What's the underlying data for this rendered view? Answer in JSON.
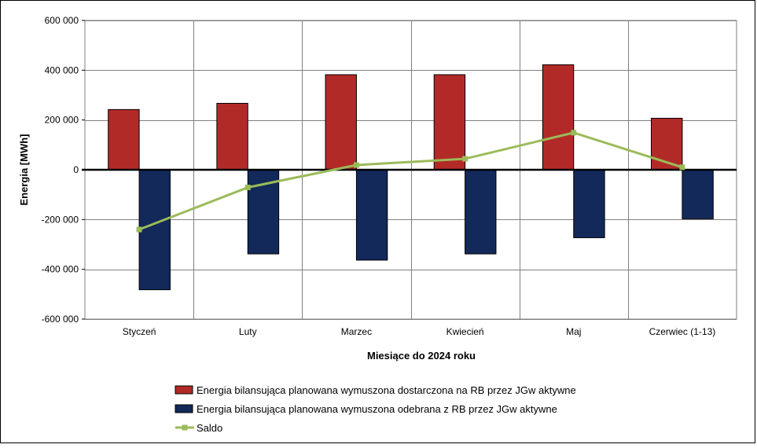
{
  "chart_data": {
    "type": "bar",
    "title": "",
    "xlabel": "Miesiące do 2024  roku",
    "ylabel": "Energia [MWh]",
    "ylim": [
      -600000,
      600000
    ],
    "ytick_values": [
      600000,
      400000,
      200000,
      0,
      -200000,
      -400000,
      -600000
    ],
    "ytick_labels": [
      "600 000",
      "400 000",
      "200 000",
      "0",
      "-200 000",
      "-400 000",
      "-600 000"
    ],
    "categories": [
      "Styczeń",
      "Luty",
      "Marzec",
      "Kwiecień",
      "Maj",
      "Czerwiec (1-13)"
    ],
    "grid": true,
    "legend_position": "bottom",
    "series": [
      {
        "name": "Energia bilansująca planowana wymuszona dostarczona na RB przez JGw aktywne",
        "kind": "bar",
        "color": "#B22A28",
        "values": [
          242000,
          267000,
          382000,
          382000,
          422000,
          207000
        ]
      },
      {
        "name": "Energia bilansująca planowana wymuszona odebrana z RB przez JGw aktywne",
        "kind": "bar",
        "color": "#12295A",
        "values": [
          -482000,
          -338000,
          -363000,
          -338000,
          -273000,
          -197000
        ]
      },
      {
        "name": "Saldo",
        "kind": "line",
        "color": "#9BBB59",
        "values": [
          -240000,
          -71000,
          19000,
          44000,
          149000,
          10000
        ]
      }
    ]
  }
}
